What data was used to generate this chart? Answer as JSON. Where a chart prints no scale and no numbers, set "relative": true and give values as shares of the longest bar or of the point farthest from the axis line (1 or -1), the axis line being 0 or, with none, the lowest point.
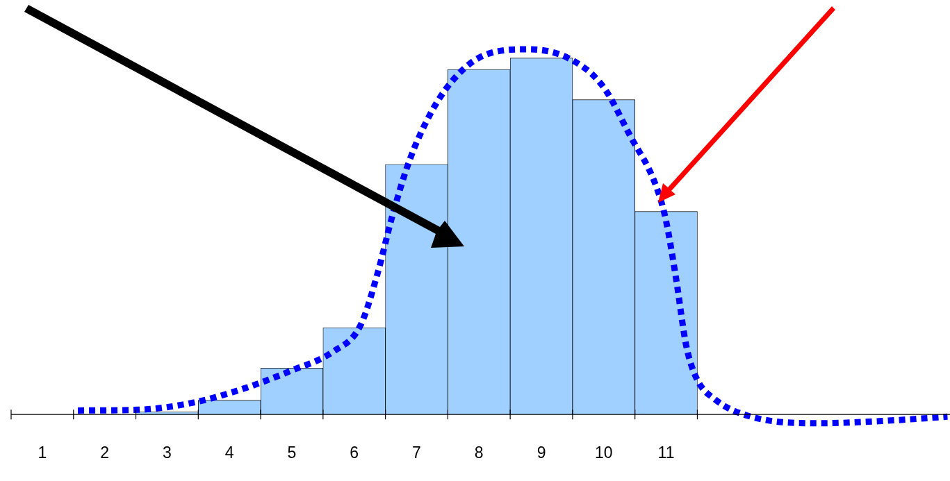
{
  "chart_data": {
    "type": "histogram",
    "relative": true,
    "xlim": [
      0.5,
      15.55
    ],
    "xticks": [
      1,
      2,
      3,
      4,
      5,
      6,
      7,
      8,
      9,
      10,
      11
    ],
    "legend": false,
    "grid": false,
    "series": [
      {
        "color": "#9fd0ff",
        "bins": [
          0.5,
          1.5,
          2.5,
          3.5,
          4.5,
          5.5,
          6.5,
          7.5,
          8.5,
          9.5,
          10.5,
          11.5
        ],
        "values": [
          0,
          0,
          0.007,
          0.039,
          0.127,
          0.238,
          0.685,
          0.945,
          0.976,
          0.862,
          0.556
        ]
      },
      {
        "type": "line",
        "color": "#0000ff",
        "line_style": "dotted",
        "marker": "none",
        "x": [
          1.57,
          2.54,
          3.43,
          4.21,
          4.99,
          5.66,
          6.1,
          6.38,
          6.6,
          6.88,
          7.21,
          7.54,
          7.99,
          8.77,
          9.43,
          9.99,
          10.43,
          10.82,
          10.99,
          11.16,
          11.32,
          11.49,
          11.77,
          12.32,
          13.43,
          14.54,
          15.51
        ],
        "values": [
          0.011,
          0.013,
          0.033,
          0.07,
          0.12,
          0.172,
          0.244,
          0.39,
          0.537,
          0.693,
          0.82,
          0.907,
          0.976,
          1,
          0.976,
          0.898,
          0.761,
          0.634,
          0.537,
          0.371,
          0.19,
          0.098,
          0.043,
          -0.004,
          -0.024,
          -0.017,
          -0.006
        ]
      }
    ]
  }
}
